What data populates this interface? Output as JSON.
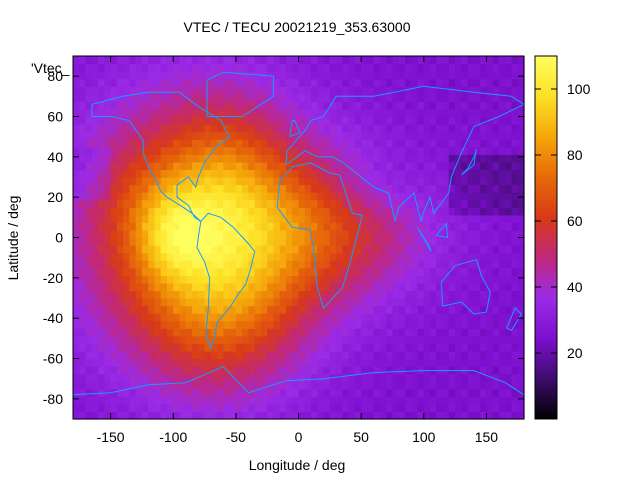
{
  "chart_data": {
    "type": "heatmap",
    "title": "VTEC / TECU 20021219_353.63000",
    "xlabel": "Longitude / deg",
    "ylabel": "Latitude / deg",
    "key_label": "'Vtec_",
    "xlim": [
      -180,
      180
    ],
    "ylim": [
      -90,
      90
    ],
    "x_ticks": [
      -150,
      -100,
      -50,
      0,
      50,
      100,
      150
    ],
    "y_ticks": [
      -80,
      -60,
      -40,
      -20,
      0,
      20,
      40,
      60,
      80
    ],
    "colorbar": {
      "range": [
        0,
        110
      ],
      "ticks": [
        20,
        40,
        60,
        80,
        100
      ],
      "colors": [
        "#000000",
        "#3d0c6b",
        "#7d0fcf",
        "#9b2be6",
        "#c0287a",
        "#d83a18",
        "#e76a08",
        "#f5a70a",
        "#fde025",
        "#ffff60"
      ]
    },
    "grid": false,
    "colormap_note": "black-purple-red-orange-yellow",
    "continent_color": "#1a9bff",
    "blobs": [
      {
        "lon": -80,
        "lat": 5,
        "sx": 65,
        "sy": 45,
        "amp": 50
      },
      {
        "lon": -105,
        "lat": 15,
        "sx": 35,
        "sy": 20,
        "amp": 10
      },
      {
        "lon": -55,
        "lat": 35,
        "sx": 30,
        "sy": 25,
        "amp": 12
      },
      {
        "lon": 20,
        "lat": 5,
        "sx": 60,
        "sy": 25,
        "amp": 30
      },
      {
        "lon": -60,
        "lat": -35,
        "sx": 45,
        "sy": 30,
        "amp": 25
      },
      {
        "lon": -100,
        "lat": 0,
        "sx": 20,
        "sy": 15,
        "amp": 15
      },
      {
        "lon": 60,
        "lat": 25,
        "sx": 30,
        "sy": 12,
        "amp": -8
      }
    ],
    "base": 25
  }
}
